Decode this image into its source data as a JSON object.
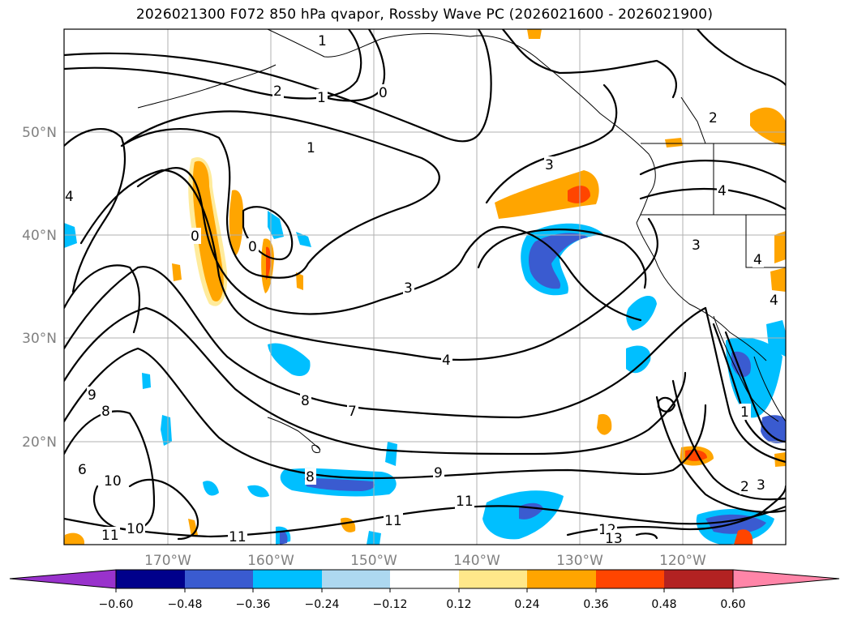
{
  "title": "2026021300 F072 850 hPa qvapor, Rossby Wave PC (2026021600 - 2026021900)",
  "axes": {
    "lon_ticks": [
      "170°W",
      "160°W",
      "150°W",
      "140°W",
      "130°W",
      "120°W"
    ],
    "lat_ticks": [
      "50°N",
      "40°N",
      "30°N",
      "20°N"
    ]
  },
  "colorbar": {
    "tick_labels": [
      "−0.60",
      "−0.48",
      "−0.36",
      "−0.24",
      "−0.12",
      "0.12",
      "0.24",
      "0.36",
      "0.48",
      "0.60"
    ],
    "colors": [
      "#9932cc",
      "#00008b",
      "#3a5bd0",
      "#00bfff",
      "#add8f0",
      "#ffffff",
      "#ffe88a",
      "#ffa500",
      "#ff4500",
      "#b22222",
      "#ff85a8"
    ],
    "extend": "both"
  },
  "contour_labels": [
    "1",
    "2",
    "1",
    "0",
    "1",
    "3",
    "0",
    "0",
    "3",
    "4",
    "8",
    "7",
    "9",
    "8",
    "6",
    "10",
    "10",
    "11",
    "11",
    "8",
    "9",
    "11",
    "11",
    "12",
    "13",
    "4",
    "4",
    "3",
    "4",
    "1",
    "3",
    "2",
    "4",
    "2"
  ]
}
